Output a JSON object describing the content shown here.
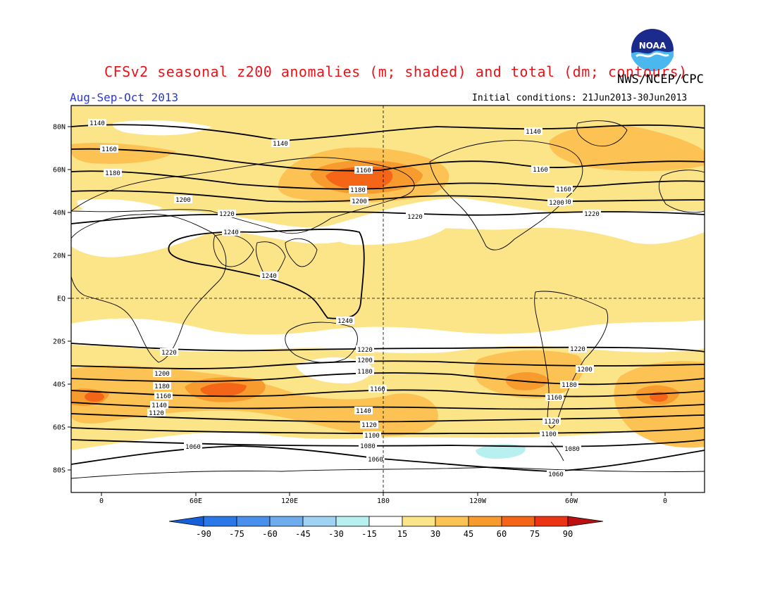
{
  "header": {
    "title": "CFSv2 seasonal z200 anomalies (m; shaded) and total (dm; contours)",
    "agency": "NWS/NCEP/CPC",
    "season": "Aug-Sep-Oct 2013",
    "initial_conditions": "Initial conditions: 21Jun2013-30Jun2013",
    "logo_text": "NOAA"
  },
  "map": {
    "lat_labels": [
      "80N",
      "60N",
      "40N",
      "20N",
      "EQ",
      "20S",
      "40S",
      "60S",
      "80S"
    ],
    "lon_labels": [
      "0",
      "60E",
      "120E",
      "180",
      "120W",
      "60W",
      "0"
    ],
    "contour_levels": [
      "1060",
      "1080",
      "1100",
      "1120",
      "1140",
      "1160",
      "1180",
      "1200",
      "1220",
      "1240"
    ],
    "contour_labels": [
      "1140",
      "1140",
      "1140",
      "1160",
      "1160",
      "1160",
      "1180",
      "1160",
      "1180",
      "1180",
      "1200",
      "1200",
      "1200",
      "1220",
      "1220",
      "1220",
      "1240",
      "1240",
      "1240",
      "1220",
      "1220",
      "1220",
      "1200",
      "1200",
      "1180",
      "1200",
      "1180",
      "1160",
      "1180",
      "1160",
      "1160",
      "1140",
      "1140",
      "1120",
      "1120",
      "1120",
      "1100",
      "1100",
      "1080",
      "1080",
      "1060",
      "1060",
      "1060"
    ]
  },
  "colorbar": {
    "labels": [
      "-90",
      "-75",
      "-60",
      "-45",
      "-30",
      "-15",
      "15",
      "30",
      "45",
      "60",
      "75",
      "90"
    ],
    "colors": [
      "#1560d8",
      "#2a78e8",
      "#4890ec",
      "#6eacee",
      "#a0d2f4",
      "#b8f0f0",
      "#ffffff",
      "#fce489",
      "#fcc253",
      "#f89b2f",
      "#f46518",
      "#ec3414",
      "#bc1010"
    ]
  },
  "colors": {
    "title": "#e8141c",
    "season": "#2a36d8",
    "anom_15_30": "#fce489",
    "anom_30_45": "#fcc253",
    "anom_45_60": "#f89b2f",
    "anom_60_75": "#f46518",
    "anom_neg_15_30": "#b8f0f0"
  }
}
